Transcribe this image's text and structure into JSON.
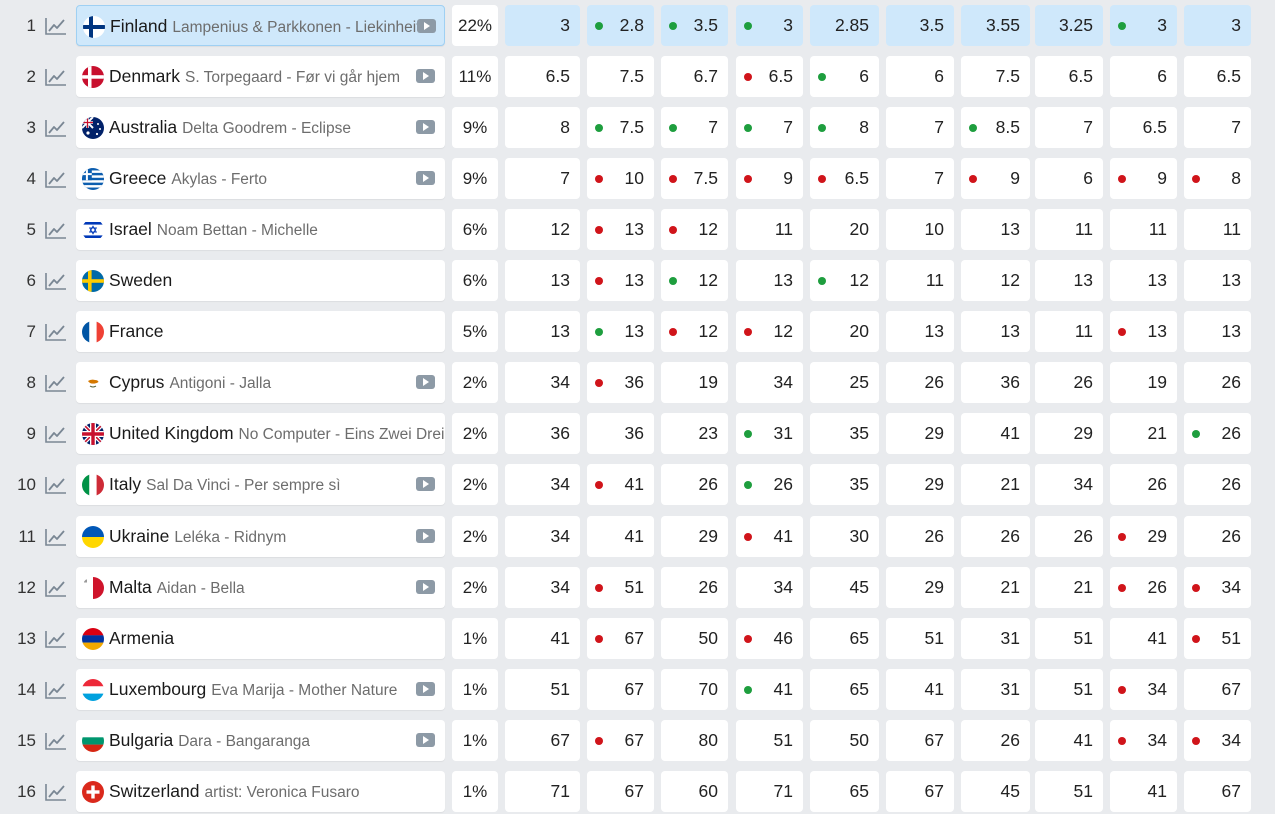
{
  "rows": [
    {
      "rank": "1",
      "country": "Finland",
      "song": "Lampenius & Parkkonen - Liekinheitin",
      "video": true,
      "flag": "fi",
      "pct": "22%",
      "leader": true,
      "odds": [
        {
          "v": "3",
          "t": ""
        },
        {
          "v": "2.8",
          "t": "up"
        },
        {
          "v": "3.5",
          "t": "up"
        },
        {
          "v": "3",
          "t": "up"
        },
        {
          "v": "2.85",
          "t": ""
        },
        {
          "v": "3.5",
          "t": ""
        },
        {
          "v": "3.55",
          "t": ""
        },
        {
          "v": "3.25",
          "t": ""
        },
        {
          "v": "3",
          "t": "up"
        },
        {
          "v": "3",
          "t": ""
        }
      ]
    },
    {
      "rank": "2",
      "country": "Denmark",
      "song": "S. Torpegaard - Før vi går hjem",
      "video": true,
      "flag": "dk",
      "pct": "11%",
      "odds": [
        {
          "v": "6.5",
          "t": ""
        },
        {
          "v": "7.5",
          "t": ""
        },
        {
          "v": "6.7",
          "t": ""
        },
        {
          "v": "6.5",
          "t": "down"
        },
        {
          "v": "6",
          "t": "up"
        },
        {
          "v": "6",
          "t": ""
        },
        {
          "v": "7.5",
          "t": ""
        },
        {
          "v": "6.5",
          "t": ""
        },
        {
          "v": "6",
          "t": ""
        },
        {
          "v": "6.5",
          "t": ""
        }
      ]
    },
    {
      "rank": "3",
      "country": "Australia",
      "song": "Delta Goodrem - Eclipse",
      "video": true,
      "flag": "au",
      "pct": "9%",
      "odds": [
        {
          "v": "8",
          "t": ""
        },
        {
          "v": "7.5",
          "t": "up"
        },
        {
          "v": "7",
          "t": "up"
        },
        {
          "v": "7",
          "t": "up"
        },
        {
          "v": "8",
          "t": "up"
        },
        {
          "v": "7",
          "t": ""
        },
        {
          "v": "8.5",
          "t": "up"
        },
        {
          "v": "7",
          "t": ""
        },
        {
          "v": "6.5",
          "t": ""
        },
        {
          "v": "7",
          "t": ""
        }
      ]
    },
    {
      "rank": "4",
      "country": "Greece",
      "song": "Akylas - Ferto",
      "video": true,
      "flag": "gr",
      "pct": "9%",
      "odds": [
        {
          "v": "7",
          "t": ""
        },
        {
          "v": "10",
          "t": "down"
        },
        {
          "v": "7.5",
          "t": "down"
        },
        {
          "v": "9",
          "t": "down"
        },
        {
          "v": "6.5",
          "t": "down"
        },
        {
          "v": "7",
          "t": ""
        },
        {
          "v": "9",
          "t": "down"
        },
        {
          "v": "6",
          "t": ""
        },
        {
          "v": "9",
          "t": "down"
        },
        {
          "v": "8",
          "t": "down"
        }
      ]
    },
    {
      "rank": "5",
      "country": "Israel",
      "song": "Noam Bettan - Michelle",
      "video": false,
      "flag": "il",
      "pct": "6%",
      "odds": [
        {
          "v": "12",
          "t": ""
        },
        {
          "v": "13",
          "t": "down"
        },
        {
          "v": "12",
          "t": "down"
        },
        {
          "v": "11",
          "t": ""
        },
        {
          "v": "20",
          "t": ""
        },
        {
          "v": "10",
          "t": ""
        },
        {
          "v": "13",
          "t": ""
        },
        {
          "v": "11",
          "t": ""
        },
        {
          "v": "11",
          "t": ""
        },
        {
          "v": "11",
          "t": ""
        }
      ]
    },
    {
      "rank": "6",
      "country": "Sweden",
      "song": "",
      "video": false,
      "flag": "se",
      "pct": "6%",
      "odds": [
        {
          "v": "13",
          "t": ""
        },
        {
          "v": "13",
          "t": "down"
        },
        {
          "v": "12",
          "t": "up"
        },
        {
          "v": "13",
          "t": ""
        },
        {
          "v": "12",
          "t": "up"
        },
        {
          "v": "11",
          "t": ""
        },
        {
          "v": "12",
          "t": ""
        },
        {
          "v": "13",
          "t": ""
        },
        {
          "v": "13",
          "t": ""
        },
        {
          "v": "13",
          "t": ""
        }
      ]
    },
    {
      "rank": "7",
      "country": "France",
      "song": "",
      "video": false,
      "flag": "fr",
      "pct": "5%",
      "odds": [
        {
          "v": "13",
          "t": ""
        },
        {
          "v": "13",
          "t": "up"
        },
        {
          "v": "12",
          "t": "down"
        },
        {
          "v": "12",
          "t": "down"
        },
        {
          "v": "20",
          "t": ""
        },
        {
          "v": "13",
          "t": ""
        },
        {
          "v": "13",
          "t": ""
        },
        {
          "v": "11",
          "t": ""
        },
        {
          "v": "13",
          "t": "down"
        },
        {
          "v": "13",
          "t": ""
        }
      ]
    },
    {
      "rank": "8",
      "country": "Cyprus",
      "song": "Antigoni - Jalla",
      "video": true,
      "flag": "cy",
      "pct": "2%",
      "odds": [
        {
          "v": "34",
          "t": ""
        },
        {
          "v": "36",
          "t": "down"
        },
        {
          "v": "19",
          "t": ""
        },
        {
          "v": "34",
          "t": ""
        },
        {
          "v": "25",
          "t": ""
        },
        {
          "v": "26",
          "t": ""
        },
        {
          "v": "36",
          "t": ""
        },
        {
          "v": "26",
          "t": ""
        },
        {
          "v": "19",
          "t": ""
        },
        {
          "v": "26",
          "t": ""
        }
      ]
    },
    {
      "rank": "9",
      "country": "United Kingdom",
      "song": "No Computer - Eins Zwei Drei",
      "video": false,
      "flag": "uk",
      "pct": "2%",
      "odds": [
        {
          "v": "36",
          "t": ""
        },
        {
          "v": "36",
          "t": ""
        },
        {
          "v": "23",
          "t": ""
        },
        {
          "v": "31",
          "t": "up"
        },
        {
          "v": "35",
          "t": ""
        },
        {
          "v": "29",
          "t": ""
        },
        {
          "v": "41",
          "t": ""
        },
        {
          "v": "29",
          "t": ""
        },
        {
          "v": "21",
          "t": ""
        },
        {
          "v": "26",
          "t": "up"
        }
      ]
    },
    {
      "rank": "10",
      "country": "Italy",
      "song": "Sal Da Vinci - Per sempre sì",
      "video": true,
      "flag": "it",
      "pct": "2%",
      "odds": [
        {
          "v": "34",
          "t": ""
        },
        {
          "v": "41",
          "t": "down"
        },
        {
          "v": "26",
          "t": ""
        },
        {
          "v": "26",
          "t": "up"
        },
        {
          "v": "35",
          "t": ""
        },
        {
          "v": "29",
          "t": ""
        },
        {
          "v": "21",
          "t": ""
        },
        {
          "v": "34",
          "t": ""
        },
        {
          "v": "26",
          "t": ""
        },
        {
          "v": "26",
          "t": ""
        }
      ]
    },
    {
      "rank": "11",
      "country": "Ukraine",
      "song": "Leléka - Ridnym",
      "video": true,
      "flag": "ua",
      "pct": "2%",
      "odds": [
        {
          "v": "34",
          "t": ""
        },
        {
          "v": "41",
          "t": ""
        },
        {
          "v": "29",
          "t": ""
        },
        {
          "v": "41",
          "t": "down"
        },
        {
          "v": "30",
          "t": ""
        },
        {
          "v": "26",
          "t": ""
        },
        {
          "v": "26",
          "t": ""
        },
        {
          "v": "26",
          "t": ""
        },
        {
          "v": "29",
          "t": "down"
        },
        {
          "v": "26",
          "t": ""
        }
      ]
    },
    {
      "rank": "12",
      "country": "Malta",
      "song": "Aidan - Bella",
      "video": true,
      "flag": "mt",
      "pct": "2%",
      "odds": [
        {
          "v": "34",
          "t": ""
        },
        {
          "v": "51",
          "t": "down"
        },
        {
          "v": "26",
          "t": ""
        },
        {
          "v": "34",
          "t": ""
        },
        {
          "v": "45",
          "t": ""
        },
        {
          "v": "29",
          "t": ""
        },
        {
          "v": "21",
          "t": ""
        },
        {
          "v": "21",
          "t": ""
        },
        {
          "v": "26",
          "t": "down"
        },
        {
          "v": "34",
          "t": "down"
        }
      ]
    },
    {
      "rank": "13",
      "country": "Armenia",
      "song": "",
      "video": false,
      "flag": "am",
      "pct": "1%",
      "odds": [
        {
          "v": "41",
          "t": ""
        },
        {
          "v": "67",
          "t": "down"
        },
        {
          "v": "50",
          "t": ""
        },
        {
          "v": "46",
          "t": "down"
        },
        {
          "v": "65",
          "t": ""
        },
        {
          "v": "51",
          "t": ""
        },
        {
          "v": "31",
          "t": ""
        },
        {
          "v": "51",
          "t": ""
        },
        {
          "v": "41",
          "t": ""
        },
        {
          "v": "51",
          "t": "down"
        }
      ]
    },
    {
      "rank": "14",
      "country": "Luxembourg",
      "song": "Eva Marija - Mother Nature",
      "video": true,
      "flag": "lu",
      "pct": "1%",
      "odds": [
        {
          "v": "51",
          "t": ""
        },
        {
          "v": "67",
          "t": ""
        },
        {
          "v": "70",
          "t": ""
        },
        {
          "v": "41",
          "t": "up"
        },
        {
          "v": "65",
          "t": ""
        },
        {
          "v": "41",
          "t": ""
        },
        {
          "v": "31",
          "t": ""
        },
        {
          "v": "51",
          "t": ""
        },
        {
          "v": "34",
          "t": "down"
        },
        {
          "v": "67",
          "t": ""
        }
      ]
    },
    {
      "rank": "15",
      "country": "Bulgaria",
      "song": "Dara - Bangaranga",
      "video": true,
      "flag": "bg",
      "pct": "1%",
      "odds": [
        {
          "v": "67",
          "t": ""
        },
        {
          "v": "67",
          "t": "down"
        },
        {
          "v": "80",
          "t": ""
        },
        {
          "v": "51",
          "t": ""
        },
        {
          "v": "50",
          "t": ""
        },
        {
          "v": "67",
          "t": ""
        },
        {
          "v": "26",
          "t": ""
        },
        {
          "v": "41",
          "t": ""
        },
        {
          "v": "34",
          "t": "down"
        },
        {
          "v": "34",
          "t": "down"
        }
      ]
    },
    {
      "rank": "16",
      "country": "Switzerland",
      "song": "artist: Veronica Fusaro",
      "video": false,
      "flag": "ch",
      "pct": "1%",
      "odds": [
        {
          "v": "71",
          "t": ""
        },
        {
          "v": "67",
          "t": ""
        },
        {
          "v": "60",
          "t": ""
        },
        {
          "v": "71",
          "t": ""
        },
        {
          "v": "65",
          "t": ""
        },
        {
          "v": "67",
          "t": ""
        },
        {
          "v": "45",
          "t": ""
        },
        {
          "v": "51",
          "t": ""
        },
        {
          "v": "41",
          "t": ""
        },
        {
          "v": "67",
          "t": ""
        }
      ]
    }
  ],
  "colors": {
    "up": "#1e9e3e",
    "down": "#d0141a",
    "leader_bg": "#cfe8fb"
  }
}
